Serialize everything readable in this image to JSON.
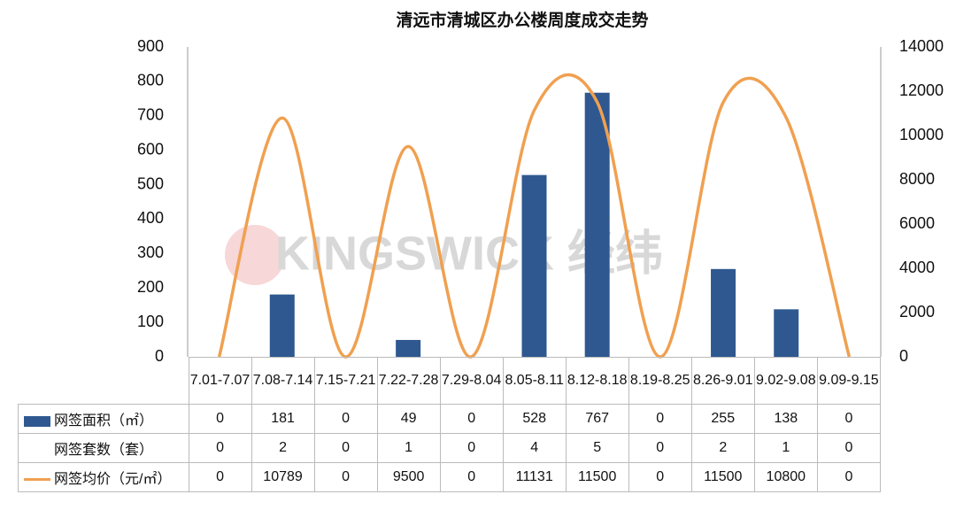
{
  "chart_data": {
    "type": "bar-line",
    "title": "清远市清城区办公楼周度成交走势",
    "watermark": "KINGSWICK 经纬",
    "categories": [
      "7.01-7.07",
      "7.08-7.14",
      "7.15-7.21",
      "7.22-7.28",
      "7.29-8.04",
      "8.05-8.11",
      "8.12-8.18",
      "8.19-8.25",
      "8.26-9.01",
      "9.02-9.08",
      "9.09-9.15"
    ],
    "series": [
      {
        "name": "网签面积（㎡）",
        "type": "bar",
        "color": "#2f5890",
        "values": [
          0,
          181,
          0,
          49,
          0,
          528,
          767,
          0,
          255,
          138,
          0
        ]
      },
      {
        "name": "网签套数（套）",
        "type": "table",
        "values": [
          0,
          2,
          0,
          1,
          0,
          4,
          5,
          0,
          2,
          1,
          0
        ]
      },
      {
        "name": "网签均价（元/㎡）",
        "type": "line",
        "axis": "y2",
        "color": "#f0a050",
        "values": [
          0,
          10789,
          0,
          9500,
          0,
          11131,
          11500,
          0,
          11500,
          10800,
          0
        ]
      }
    ],
    "ylim": [
      0,
      900
    ],
    "yticks": [
      0,
      100,
      200,
      300,
      400,
      500,
      600,
      700,
      800,
      900
    ],
    "y2lim": [
      0,
      14000
    ],
    "y2ticks": [
      0,
      2000,
      4000,
      6000,
      8000,
      10000,
      12000,
      14000
    ]
  }
}
